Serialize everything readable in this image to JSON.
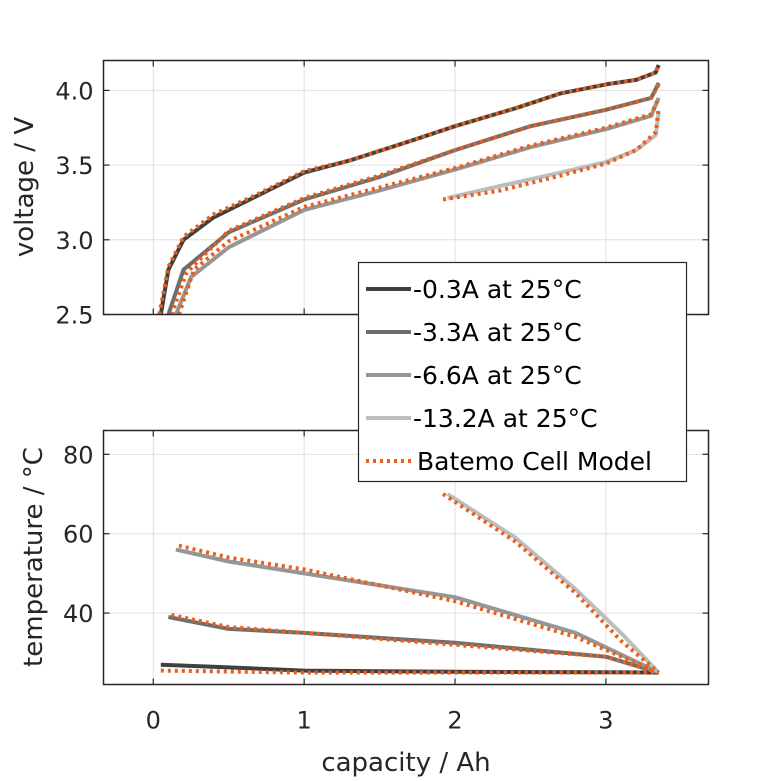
{
  "chart_data": [
    {
      "type": "line",
      "title": "",
      "xlabel": "",
      "ylabel": "voltage / V",
      "xlim": [
        -0.33,
        3.68
      ],
      "ylim": [
        2.5,
        4.2
      ],
      "grid": true,
      "xticks": [
        0,
        1,
        2,
        3
      ],
      "yticks": [
        2.5,
        3.0,
        3.5,
        4.0
      ],
      "ytick_labels": [
        "2.5",
        "3.0",
        "3.5",
        "4.0"
      ],
      "series": [
        {
          "name": "-0.3A at 25°C",
          "style": "solid",
          "color": "#404040",
          "x": [
            0.05,
            0.1,
            0.2,
            0.4,
            0.7,
            1.0,
            1.3,
            1.7,
            2.0,
            2.4,
            2.7,
            3.0,
            3.2,
            3.33,
            3.35
          ],
          "y": [
            2.5,
            2.8,
            3.0,
            3.15,
            3.3,
            3.45,
            3.53,
            3.66,
            3.76,
            3.88,
            3.98,
            4.04,
            4.07,
            4.12,
            4.17
          ]
        },
        {
          "name": "-3.3A at 25°C",
          "style": "solid",
          "color": "#6e6e6e",
          "x": [
            0.1,
            0.2,
            0.5,
            1.0,
            1.5,
            2.0,
            2.5,
            3.0,
            3.3,
            3.35
          ],
          "y": [
            2.5,
            2.8,
            3.05,
            3.27,
            3.42,
            3.6,
            3.76,
            3.87,
            3.95,
            4.05
          ]
        },
        {
          "name": "-6.6A at 25°C",
          "style": "solid",
          "color": "#969696",
          "x": [
            0.15,
            0.25,
            0.5,
            1.0,
            1.5,
            2.0,
            2.5,
            3.0,
            3.3,
            3.35
          ],
          "y": [
            2.5,
            2.75,
            2.95,
            3.2,
            3.33,
            3.47,
            3.62,
            3.74,
            3.83,
            3.95
          ]
        },
        {
          "name": "-13.2A at 25°C",
          "style": "solid",
          "color": "#bdbdbd",
          "x": [
            1.95,
            2.3,
            2.7,
            3.0,
            3.2,
            3.33,
            3.35
          ],
          "y": [
            3.28,
            3.36,
            3.45,
            3.52,
            3.6,
            3.7,
            3.85
          ]
        },
        {
          "name": "Batemo Cell Model",
          "style": "dotted",
          "color": "#e8601c",
          "model_of": [
            "-0.3A at 25°C",
            "-3.3A at 25°C",
            "-6.6A at 25°C",
            "-13.2A at 25°C"
          ]
        }
      ]
    },
    {
      "type": "line",
      "title": "",
      "xlabel": "capacity / Ah",
      "ylabel": "temperature / °C",
      "xlim": [
        -0.33,
        3.68
      ],
      "ylim": [
        22,
        86
      ],
      "grid": true,
      "xticks": [
        0,
        1,
        2,
        3
      ],
      "xtick_labels": [
        "0",
        "1",
        "2",
        "3"
      ],
      "yticks": [
        40,
        60,
        80
      ],
      "ytick_labels": [
        "40",
        "60",
        "80"
      ],
      "series": [
        {
          "name": "-0.3A at 25°C",
          "style": "solid",
          "color": "#404040",
          "x": [
            0.05,
            0.5,
            1.0,
            2.0,
            3.0,
            3.35
          ],
          "y": [
            27,
            26.3,
            25.5,
            25.2,
            25.1,
            25
          ]
        },
        {
          "name": "-3.3A at 25°C",
          "style": "solid",
          "color": "#6e6e6e",
          "x": [
            0.1,
            0.5,
            1.0,
            2.0,
            3.0,
            3.35
          ],
          "y": [
            39,
            36,
            35,
            32.5,
            29,
            25
          ]
        },
        {
          "name": "-6.6A at 25°C",
          "style": "solid",
          "color": "#969696",
          "x": [
            0.15,
            0.5,
            1.0,
            2.0,
            2.8,
            3.35
          ],
          "y": [
            56,
            53,
            50,
            44,
            35,
            25
          ]
        },
        {
          "name": "-13.2A at 25°C",
          "style": "solid",
          "color": "#bdbdbd",
          "x": [
            1.95,
            2.4,
            2.8,
            3.1,
            3.35
          ],
          "y": [
            70,
            59,
            46,
            35,
            25
          ]
        },
        {
          "name": "Batemo Cell Model",
          "style": "dotted",
          "color": "#e8601c",
          "model_of": [
            "-0.3A at 25°C",
            "-3.3A at 25°C",
            "-6.6A at 25°C",
            "-13.2A at 25°C"
          ]
        }
      ]
    }
  ],
  "model_curves": {
    "voltage": [
      {
        "x": [
          0.04,
          0.1,
          0.2,
          0.4,
          0.7,
          1.0,
          1.3,
          1.7,
          2.0,
          2.4,
          2.7,
          3.0,
          3.2,
          3.33,
          3.35
        ],
        "y": [
          2.5,
          2.82,
          3.02,
          3.17,
          3.31,
          3.46,
          3.53,
          3.66,
          3.76,
          3.88,
          3.98,
          4.04,
          4.07,
          4.12,
          4.17
        ]
      },
      {
        "x": [
          0.12,
          0.22,
          0.5,
          1.0,
          1.5,
          2.0,
          2.5,
          3.0,
          3.3,
          3.35
        ],
        "y": [
          2.5,
          2.78,
          3.06,
          3.28,
          3.43,
          3.6,
          3.76,
          3.87,
          3.95,
          4.04
        ]
      },
      {
        "x": [
          0.17,
          0.27,
          0.5,
          1.0,
          1.5,
          2.0,
          2.5,
          3.0,
          3.3,
          3.35
        ],
        "y": [
          2.5,
          2.8,
          2.99,
          3.22,
          3.35,
          3.48,
          3.63,
          3.75,
          3.84,
          3.95
        ]
      },
      {
        "x": [
          1.92,
          2.3,
          2.7,
          3.0,
          3.2,
          3.33,
          3.35
        ],
        "y": [
          3.27,
          3.33,
          3.43,
          3.51,
          3.6,
          3.72,
          3.88
        ]
      }
    ],
    "temperature": [
      {
        "x": [
          0.05,
          1.0,
          2.0,
          3.0,
          3.35
        ],
        "y": [
          25.5,
          25,
          25,
          25,
          25
        ]
      },
      {
        "x": [
          0.12,
          0.5,
          1.0,
          2.0,
          3.0,
          3.35
        ],
        "y": [
          39.5,
          36.5,
          35,
          32,
          29,
          25
        ]
      },
      {
        "x": [
          0.17,
          0.5,
          1.0,
          2.0,
          2.8,
          3.35
        ],
        "y": [
          57,
          54,
          51,
          43,
          34,
          25
        ]
      },
      {
        "x": [
          1.92,
          2.4,
          2.8,
          3.1,
          3.35
        ],
        "y": [
          70,
          58,
          45,
          33,
          25
        ]
      }
    ]
  },
  "legend": {
    "position": "center-right",
    "entries": [
      {
        "label": "-0.3A at 25°C",
        "color": "#404040",
        "style": "solid"
      },
      {
        "label": "-3.3A at 25°C",
        "color": "#6e6e6e",
        "style": "solid"
      },
      {
        "label": "-6.6A at 25°C",
        "color": "#969696",
        "style": "solid"
      },
      {
        "label": "-13.2A at 25°C",
        "color": "#bdbdbd",
        "style": "solid"
      },
      {
        "label": "Batemo Cell Model",
        "color": "#e8601c",
        "style": "dotted"
      }
    ]
  }
}
